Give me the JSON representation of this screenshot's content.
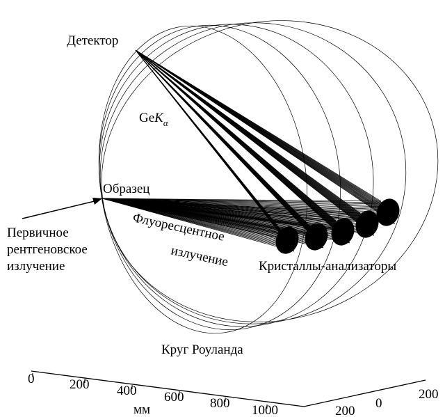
{
  "labels": {
    "detector": "Детектор",
    "element": "Ge",
    "k": "K",
    "alpha": "α",
    "sample": "Образец",
    "primary": [
      "Первичное",
      "рентгеновское",
      "излучение"
    ],
    "fluorescent": [
      "Флуоресцентное",
      "излучение"
    ],
    "crystals": "Кристаллы-анализаторы",
    "rowland": "Круг Роуланда"
  },
  "axes": {
    "x": {
      "label": "мм",
      "ticks": [
        "0",
        "200",
        "400",
        "600",
        "800",
        "1000"
      ]
    },
    "y": {
      "ticks": [
        "200",
        "0",
        "200"
      ]
    }
  }
}
